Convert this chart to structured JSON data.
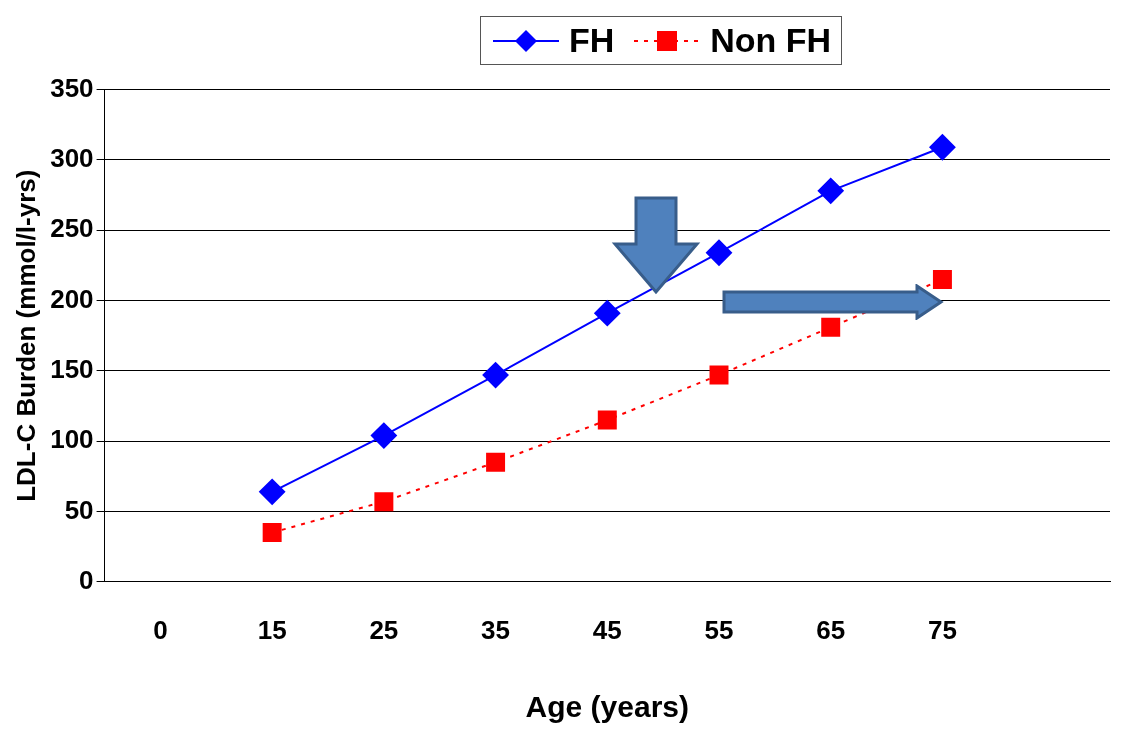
{
  "chart_data": {
    "type": "line",
    "xlabel": "Age (years)",
    "ylabel": "LDL-C Burden (mmol/l-yrs)",
    "categories": [
      "0",
      "15",
      "25",
      "35",
      "45",
      "55",
      "65",
      "75",
      null
    ],
    "series": [
      {
        "name": "FH",
        "color": "#0000ff",
        "values": [
          null,
          64,
          104,
          147,
          191,
          234,
          278,
          309,
          null
        ],
        "marker": "diamond",
        "line_style": "solid"
      },
      {
        "name": "Non FH",
        "color": "#ff0000",
        "values": [
          null,
          35,
          57,
          85,
          115,
          147,
          181,
          215,
          null
        ],
        "marker": "square",
        "line_style": "dotted"
      }
    ],
    "ylim": [
      0,
      350
    ],
    "yticks": [
      0,
      50,
      100,
      150,
      200,
      250,
      300,
      350
    ],
    "grid": "y",
    "legend": "top"
  }
}
